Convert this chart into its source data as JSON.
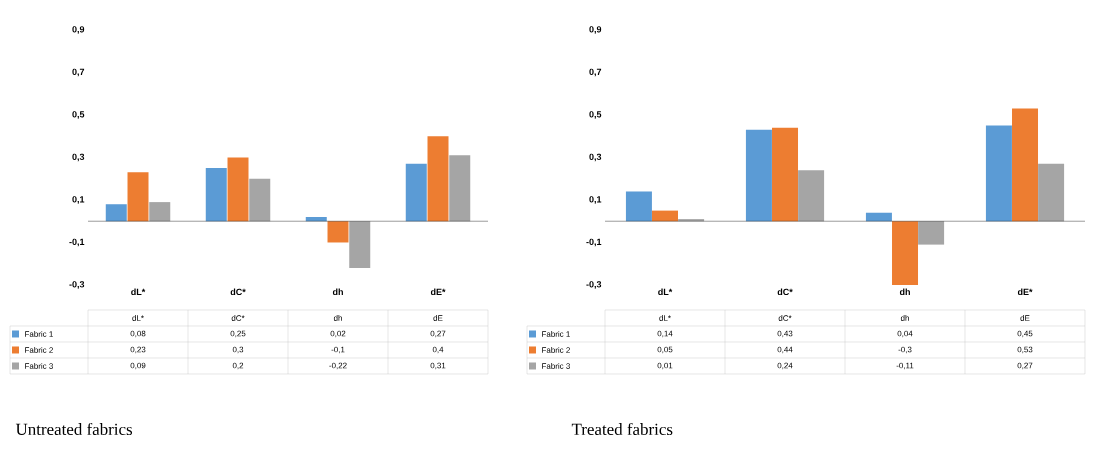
{
  "chart_data": [
    {
      "type": "bar",
      "title": "Untreated fabrics",
      "categories": [
        "dL*",
        "dC*",
        "dh",
        "dE*"
      ],
      "annotations": [
        "dL*",
        "dC*",
        "dh",
        "dE"
      ],
      "series": [
        {
          "name": "Fabric 1",
          "color": "#5b9bd5",
          "values": [
            0.08,
            0.25,
            0.02,
            0.27
          ],
          "value_labels": [
            "0,08",
            "0,25",
            "0,02",
            "0,27"
          ]
        },
        {
          "name": "Fabric 2",
          "color": "#ed7d31",
          "values": [
            0.23,
            0.3,
            -0.1,
            0.4
          ],
          "value_labels": [
            "0,23",
            "0,3",
            "-0,1",
            "0,4"
          ]
        },
        {
          "name": "Fabric 3",
          "color": "#a5a5a5",
          "values": [
            0.09,
            0.2,
            -0.22,
            0.31
          ],
          "value_labels": [
            "0,09",
            "0,2",
            "-0,22",
            "0,31"
          ]
        }
      ],
      "ylim": [
        -0.3,
        0.9
      ],
      "yticks": [
        {
          "value": -0.3,
          "label": "-0,3"
        },
        {
          "value": -0.1,
          "label": "-0,1"
        },
        {
          "value": 0.1,
          "label": "0,1"
        },
        {
          "value": 0.3,
          "label": "0,3"
        },
        {
          "value": 0.5,
          "label": "0,5"
        },
        {
          "value": 0.7,
          "label": "0,7"
        },
        {
          "value": 0.9,
          "label": "0,9"
        }
      ],
      "legend": "bottom"
    },
    {
      "type": "bar",
      "title": "Treated fabrics",
      "categories": [
        "dL*",
        "dC*",
        "dh",
        "dE*"
      ],
      "annotations": [
        "dL*",
        "dC*",
        "dh",
        "dE"
      ],
      "series": [
        {
          "name": "Fabric 1",
          "color": "#5b9bd5",
          "values": [
            0.14,
            0.43,
            0.04,
            0.45
          ],
          "value_labels": [
            "0,14",
            "0,43",
            "0,04",
            "0,45"
          ]
        },
        {
          "name": "Fabric 2",
          "color": "#ed7d31",
          "values": [
            0.05,
            0.44,
            -0.3,
            0.53
          ],
          "value_labels": [
            "0,05",
            "0,44",
            "-0,3",
            "0,53"
          ]
        },
        {
          "name": "Fabric 3",
          "color": "#a5a5a5",
          "values": [
            0.01,
            0.24,
            -0.11,
            0.27
          ],
          "value_labels": [
            "0,01",
            "0,24",
            "-0,11",
            "0,27"
          ]
        }
      ],
      "ylim": [
        -0.3,
        0.9
      ],
      "yticks": [
        {
          "value": -0.3,
          "label": "-0,3"
        },
        {
          "value": -0.1,
          "label": "-0,1"
        },
        {
          "value": 0.1,
          "label": "0,1"
        },
        {
          "value": 0.3,
          "label": "0,3"
        },
        {
          "value": 0.5,
          "label": "0,5"
        },
        {
          "value": 0.7,
          "label": "0,7"
        },
        {
          "value": 0.9,
          "label": "0,9"
        }
      ],
      "legend": "bottom"
    }
  ]
}
